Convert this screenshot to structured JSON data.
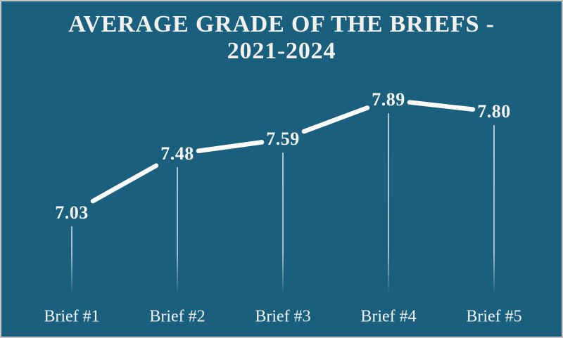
{
  "chart_data": {
    "type": "line",
    "title": "AVERAGE GRADE OF THE BRIEFS - 2021-2024",
    "categories": [
      "Brief #1",
      "Brief #2",
      "Brief #3",
      "Brief #4",
      "Brief #5"
    ],
    "values": [
      7.03,
      7.48,
      7.59,
      7.89,
      7.8
    ],
    "value_labels": [
      "7.03",
      "7.48",
      "7.59",
      "7.89",
      "7.80"
    ],
    "xlabel": "",
    "ylabel": "",
    "ylim": [
      7.0,
      8.0
    ],
    "grid": false,
    "legend": false,
    "annotations": "value label shown at each data point; thin vertical drop line fading out below each point",
    "colors": {
      "background": "#1A5F7E",
      "frame_border": "#C6C6C6",
      "line": "#FCFCFA",
      "title_text": "#F2F1EC",
      "value_label_text": "#F5F4EF",
      "category_label_text": "#F0F2EE",
      "drop_line": "#FFFFFF"
    }
  }
}
